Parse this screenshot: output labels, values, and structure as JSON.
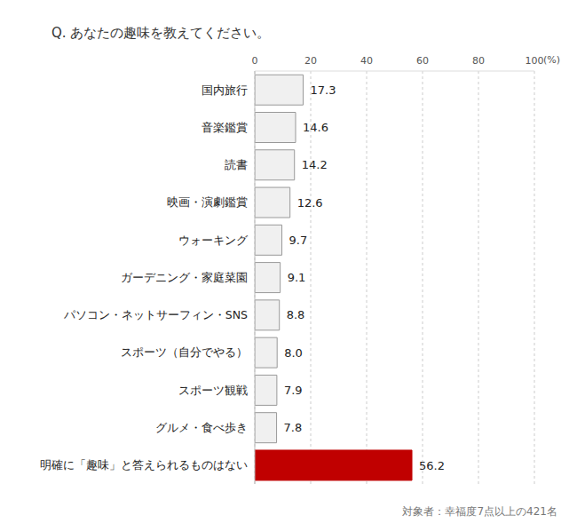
{
  "chart_data": {
    "type": "bar",
    "title": "Q. あなたの趣味を教えてください。",
    "orientation": "horizontal",
    "categories": [
      "国内旅行",
      "音楽鑑賞",
      "読書",
      "映画・演劇鑑賞",
      "ウォーキング",
      "ガーデニング・家庭菜園",
      "パソコン・ネットサーフィン・SNS",
      "スポーツ（自分でやる）",
      "スポーツ観戦",
      "グルメ・食べ歩き",
      "明確に「趣味」と答えられるものはない"
    ],
    "values": [
      17.3,
      14.6,
      14.2,
      12.6,
      9.7,
      9.1,
      8.8,
      8.0,
      7.9,
      7.8,
      56.2
    ],
    "value_labels": [
      "17.3",
      "14.6",
      "14.2",
      "12.6",
      "9.7",
      "9.1",
      "8.8",
      "8.0",
      "7.9",
      "7.8",
      "56.2"
    ],
    "colors": [
      "#f0f0f0",
      "#f0f0f0",
      "#f0f0f0",
      "#f0f0f0",
      "#f0f0f0",
      "#f0f0f0",
      "#f0f0f0",
      "#f0f0f0",
      "#f0f0f0",
      "#f0f0f0",
      "#c00000"
    ],
    "x_label": "(%)",
    "xlim": [
      0,
      100
    ],
    "xticks": [
      0,
      20,
      40,
      60,
      80,
      100
    ],
    "grid": true,
    "data_labels": true,
    "annotation": "対象者：幸福度7点以上の421名"
  }
}
